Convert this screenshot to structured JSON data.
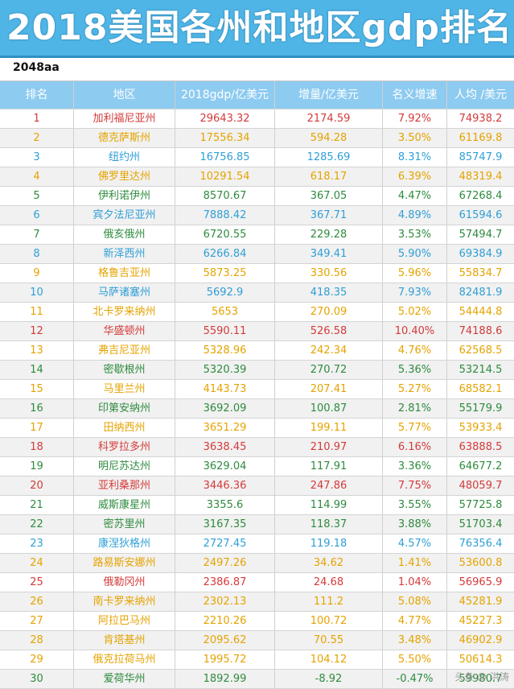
{
  "title": "2018美国各州和地区gdp排名",
  "subtitle": "2048aa",
  "colors": {
    "banner": "#4fb5e6",
    "header": "#8ecbf0",
    "red": "#d53a3a",
    "yellow": "#e5a300",
    "blue": "#2f9fd6",
    "green": "#2e8b3e"
  },
  "table": {
    "headers": [
      "排名",
      "地区",
      "2018gdp/亿美元",
      "增量/亿美元",
      "名义增速",
      "人均 /美元"
    ],
    "rows": [
      {
        "rank": "1",
        "state": "加利福尼亚州",
        "gdp": "29643.32",
        "inc": "2174.59",
        "growth": "7.92%",
        "per": "74938.2",
        "color": "red"
      },
      {
        "rank": "2",
        "state": "德克萨斯州",
        "gdp": "17556.34",
        "inc": "594.28",
        "growth": "3.50%",
        "per": "61169.8",
        "color": "yellow"
      },
      {
        "rank": "3",
        "state": "纽约州",
        "gdp": "16756.85",
        "inc": "1285.69",
        "growth": "8.31%",
        "per": "85747.9",
        "color": "blue"
      },
      {
        "rank": "4",
        "state": "佛罗里达州",
        "gdp": "10291.54",
        "inc": "618.17",
        "growth": "6.39%",
        "per": "48319.4",
        "color": "yellow"
      },
      {
        "rank": "5",
        "state": "伊利诺伊州",
        "gdp": "8570.67",
        "inc": "367.05",
        "growth": "4.47%",
        "per": "67268.4",
        "color": "green"
      },
      {
        "rank": "6",
        "state": "宾夕法尼亚州",
        "gdp": "7888.42",
        "inc": "367.71",
        "growth": "4.89%",
        "per": "61594.6",
        "color": "blue"
      },
      {
        "rank": "7",
        "state": "俄亥俄州",
        "gdp": "6720.55",
        "inc": "229.28",
        "growth": "3.53%",
        "per": "57494.7",
        "color": "green"
      },
      {
        "rank": "8",
        "state": "新泽西州",
        "gdp": "6266.84",
        "inc": "349.41",
        "growth": "5.90%",
        "per": "69384.9",
        "color": "blue"
      },
      {
        "rank": "9",
        "state": "格鲁吉亚州",
        "gdp": "5873.25",
        "inc": "330.56",
        "growth": "5.96%",
        "per": "55834.7",
        "color": "yellow"
      },
      {
        "rank": "10",
        "state": "马萨诸塞州",
        "gdp": "5692.9",
        "inc": "418.35",
        "growth": "7.93%",
        "per": "82481.9",
        "color": "blue"
      },
      {
        "rank": "11",
        "state": "北卡罗来纳州",
        "gdp": "5653",
        "inc": "270.09",
        "growth": "5.02%",
        "per": "54444.8",
        "color": "yellow"
      },
      {
        "rank": "12",
        "state": "华盛顿州",
        "gdp": "5590.11",
        "inc": "526.58",
        "growth": "10.40%",
        "per": "74188.6",
        "color": "red"
      },
      {
        "rank": "13",
        "state": "弗吉尼亚州",
        "gdp": "5328.96",
        "inc": "242.34",
        "growth": "4.76%",
        "per": "62568.5",
        "color": "yellow"
      },
      {
        "rank": "14",
        "state": "密歇根州",
        "gdp": "5320.39",
        "inc": "270.72",
        "growth": "5.36%",
        "per": "53214.5",
        "color": "green"
      },
      {
        "rank": "15",
        "state": "马里兰州",
        "gdp": "4143.73",
        "inc": "207.41",
        "growth": "5.27%",
        "per": "68582.1",
        "color": "yellow"
      },
      {
        "rank": "16",
        "state": "印第安纳州",
        "gdp": "3692.09",
        "inc": "100.87",
        "growth": "2.81%",
        "per": "55179.9",
        "color": "green"
      },
      {
        "rank": "17",
        "state": "田纳西州",
        "gdp": "3651.29",
        "inc": "199.11",
        "growth": "5.77%",
        "per": "53933.4",
        "color": "yellow"
      },
      {
        "rank": "18",
        "state": "科罗拉多州",
        "gdp": "3638.45",
        "inc": "210.97",
        "growth": "6.16%",
        "per": "63888.5",
        "color": "red"
      },
      {
        "rank": "19",
        "state": "明尼苏达州",
        "gdp": "3629.04",
        "inc": "117.91",
        "growth": "3.36%",
        "per": "64677.2",
        "color": "green"
      },
      {
        "rank": "20",
        "state": "亚利桑那州",
        "gdp": "3446.36",
        "inc": "247.86",
        "growth": "7.75%",
        "per": "48059.7",
        "color": "red"
      },
      {
        "rank": "21",
        "state": "威斯康星州",
        "gdp": "3355.6",
        "inc": "114.99",
        "growth": "3.55%",
        "per": "57725.8",
        "color": "green"
      },
      {
        "rank": "22",
        "state": "密苏里州",
        "gdp": "3167.35",
        "inc": "118.37",
        "growth": "3.88%",
        "per": "51703.4",
        "color": "green"
      },
      {
        "rank": "23",
        "state": "康涅狄格州",
        "gdp": "2727.45",
        "inc": "119.18",
        "growth": "4.57%",
        "per": "76356.4",
        "color": "blue"
      },
      {
        "rank": "24",
        "state": "路易斯安娜州",
        "gdp": "2497.26",
        "inc": "34.62",
        "growth": "1.41%",
        "per": "53600.8",
        "color": "yellow"
      },
      {
        "rank": "25",
        "state": "俄勒冈州",
        "gdp": "2386.87",
        "inc": "24.68",
        "growth": "1.04%",
        "per": "56965.9",
        "color": "red"
      },
      {
        "rank": "26",
        "state": "南卡罗来纳州",
        "gdp": "2302.13",
        "inc": "111.2",
        "growth": "5.08%",
        "per": "45281.9",
        "color": "yellow"
      },
      {
        "rank": "27",
        "state": "阿拉巴马州",
        "gdp": "2210.26",
        "inc": "100.72",
        "growth": "4.77%",
        "per": "45227.3",
        "color": "yellow"
      },
      {
        "rank": "28",
        "state": "肯塔基州",
        "gdp": "2095.62",
        "inc": "70.55",
        "growth": "3.48%",
        "per": "46902.9",
        "color": "yellow"
      },
      {
        "rank": "29",
        "state": "俄克拉荷马州",
        "gdp": "1995.72",
        "inc": "104.12",
        "growth": "5.50%",
        "per": "50614.3",
        "color": "yellow"
      },
      {
        "rank": "30",
        "state": "爱荷华州",
        "gdp": "1892.99",
        "inc": "-8.92",
        "growth": "-0.47%",
        "per": "59980.7",
        "color": "green"
      }
    ]
  },
  "watermark": "头条 @ 洪涛"
}
